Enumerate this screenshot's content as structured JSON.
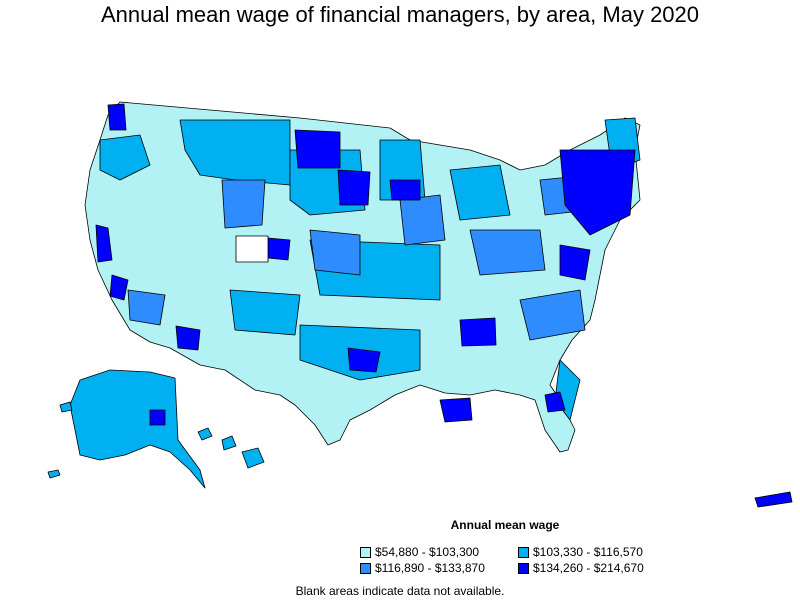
{
  "title": "Annual mean wage of financial managers, by area, May 2020",
  "legend": {
    "title": "Annual mean wage",
    "items": [
      {
        "label": "$54,880 - $103,300",
        "color": "#b2f2f4"
      },
      {
        "label": "$103,330 - $116,570",
        "color": "#00b0f0"
      },
      {
        "label": "$116,890 - $133,870",
        "color": "#2f8cff"
      },
      {
        "label": "$134,260 - $214,670",
        "color": "#0000ff"
      }
    ]
  },
  "footnote": "Blank areas indicate data not available."
}
